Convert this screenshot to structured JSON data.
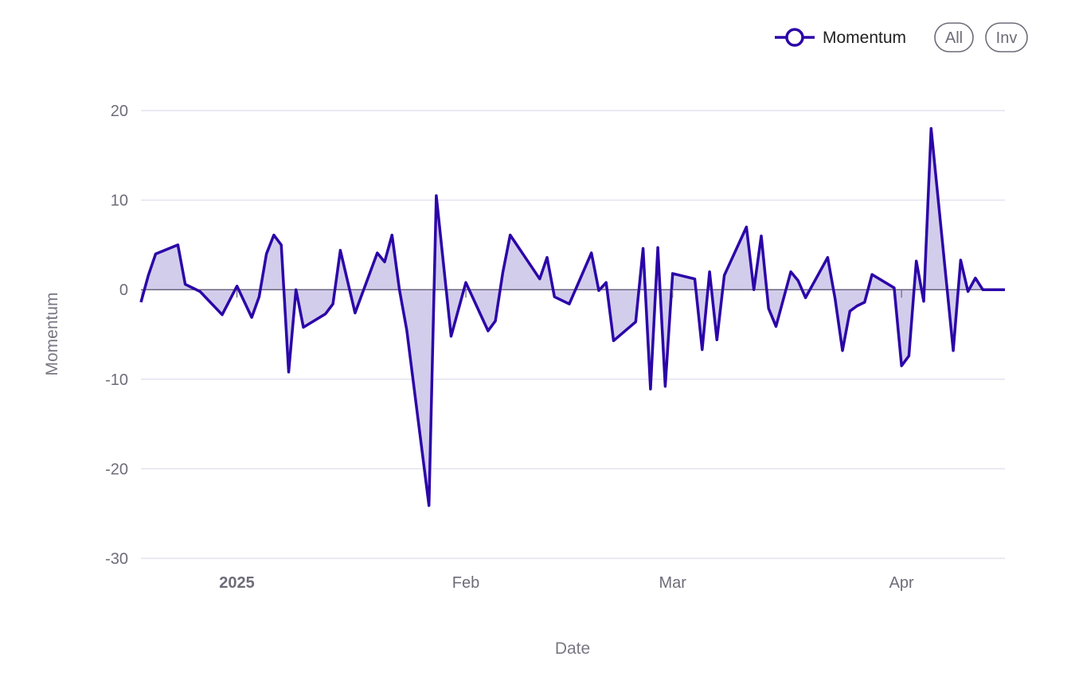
{
  "legend": {
    "series_label": "Momentum",
    "buttons": {
      "all_label": "All",
      "inv_label": "Inv"
    }
  },
  "colors": {
    "line": "#2b05a8",
    "fill": "#d3cdec",
    "grid": "#e4e2ef",
    "zero_line": "#6b6680",
    "text": "#6f6c78"
  },
  "chart_data": {
    "type": "area",
    "xlabel": "Date",
    "ylabel": "Momentum",
    "ylim": [
      -30,
      20
    ],
    "yticks": [
      20,
      10,
      0,
      -10,
      -20,
      -30
    ],
    "grid": true,
    "legend_position": "top-right",
    "xlim": [
      "2024-12-19",
      "2025-04-15"
    ],
    "xticks": [
      {
        "date": "2025-01-01",
        "label": "2025",
        "bold": true
      },
      {
        "date": "2025-02-01",
        "label": "Feb",
        "bold": false
      },
      {
        "date": "2025-03-01",
        "label": "Mar",
        "bold": false
      },
      {
        "date": "2025-04-01",
        "label": "Apr",
        "bold": false
      }
    ],
    "series": [
      {
        "name": "Momentum",
        "x": [
          "2024-12-19",
          "2024-12-20",
          "2024-12-21",
          "2024-12-24",
          "2024-12-25",
          "2024-12-27",
          "2024-12-30",
          "2025-01-01",
          "2025-01-03",
          "2025-01-04",
          "2025-01-05",
          "2025-01-06",
          "2025-01-07",
          "2025-01-08",
          "2025-01-09",
          "2025-01-10",
          "2025-01-13",
          "2025-01-14",
          "2025-01-15",
          "2025-01-17",
          "2025-01-20",
          "2025-01-21",
          "2025-01-22",
          "2025-01-23",
          "2025-01-24",
          "2025-01-27",
          "2025-01-28",
          "2025-01-30",
          "2025-02-01",
          "2025-02-04",
          "2025-02-05",
          "2025-02-06",
          "2025-02-07",
          "2025-02-11",
          "2025-02-12",
          "2025-02-13",
          "2025-02-15",
          "2025-02-18",
          "2025-02-19",
          "2025-02-20",
          "2025-02-21",
          "2025-02-24",
          "2025-02-25",
          "2025-02-26",
          "2025-02-27",
          "2025-02-28",
          "2025-03-01",
          "2025-03-04",
          "2025-03-05",
          "2025-03-06",
          "2025-03-07",
          "2025-03-08",
          "2025-03-11",
          "2025-03-12",
          "2025-03-13",
          "2025-03-14",
          "2025-03-15",
          "2025-03-17",
          "2025-03-18",
          "2025-03-19",
          "2025-03-22",
          "2025-03-23",
          "2025-03-24",
          "2025-03-25",
          "2025-03-26",
          "2025-03-27",
          "2025-03-28",
          "2025-03-31",
          "2025-04-01",
          "2025-04-02",
          "2025-04-03",
          "2025-04-04",
          "2025-04-05",
          "2025-04-08",
          "2025-04-09",
          "2025-04-10",
          "2025-04-11",
          "2025-04-12",
          "2025-04-14",
          "2025-04-15"
        ],
        "y": [
          -1.4,
          1.6,
          4,
          5,
          0.6,
          -0.2,
          -2.8,
          0.4,
          -3.1,
          -0.8,
          4,
          6.1,
          5,
          -9.2,
          0,
          -4.2,
          -2.7,
          -1.6,
          4.4,
          -2.6,
          4.1,
          3.1,
          6.1,
          0,
          -4.5,
          -24.1,
          10.5,
          -5.2,
          0.8,
          -4.6,
          -3.5,
          1.9,
          6.1,
          1.2,
          3.6,
          -0.8,
          -1.6,
          4.1,
          -0.1,
          0.8,
          -5.7,
          -3.6,
          4.6,
          -11.1,
          4.7,
          -10.8,
          1.8,
          1.2,
          -6.7,
          2,
          -5.6,
          1.6,
          7,
          0,
          6,
          -2.1,
          -4.1,
          2,
          1,
          -0.9,
          3.6,
          -1,
          -6.8,
          -2.4,
          -1.8,
          -1.4,
          1.7,
          0.2,
          -8.5,
          -7.4,
          3.2,
          -1.3,
          18,
          -6.8,
          3.3,
          -0.2,
          1.3,
          0,
          0,
          0
        ]
      }
    ]
  }
}
